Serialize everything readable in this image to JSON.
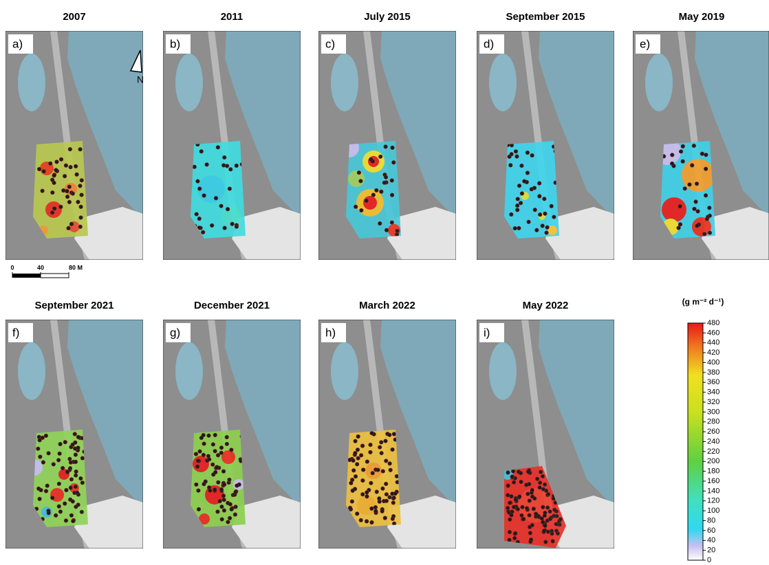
{
  "panels": [
    {
      "title": "2007",
      "label": "a)"
    },
    {
      "title": "2011",
      "label": "b)"
    },
    {
      "title": "July 2015",
      "label": "c)"
    },
    {
      "title": "September 2015",
      "label": "d)"
    },
    {
      "title": "May 2019",
      "label": "e)"
    },
    {
      "title": "September 2021",
      "label": "f)"
    },
    {
      "title": "December 2021",
      "label": "g)"
    },
    {
      "title": "March 2022",
      "label": "h)"
    },
    {
      "title": "May 2022",
      "label": "i)"
    }
  ],
  "north_label": "N",
  "scale_bar": {
    "ticks": [
      0,
      40,
      {
        "value": 80,
        "label": "80 M"
      }
    ]
  },
  "colorbar": {
    "units": "(g m⁻² d⁻¹)",
    "lim": [
      0,
      480
    ],
    "ticks": [
      0,
      20,
      40,
      60,
      80,
      100,
      120,
      140,
      160,
      180,
      200,
      220,
      240,
      260,
      280,
      300,
      320,
      340,
      360,
      380,
      400,
      420,
      440,
      460,
      480
    ]
  }
}
